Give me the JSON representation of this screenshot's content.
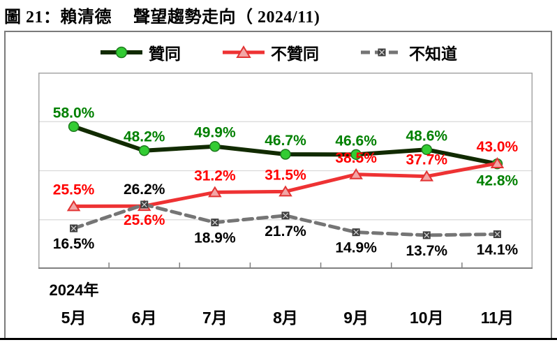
{
  "page": {
    "title": "圖 21：賴清德　 聲望趨勢走向（ 2024/11)"
  },
  "legend": {
    "items": [
      {
        "label": "贊同",
        "marker": "circle"
      },
      {
        "label": "不贊同",
        "marker": "triangle"
      },
      {
        "label": "不知道",
        "marker": "square-x"
      }
    ]
  },
  "chart_data": {
    "type": "line",
    "title": "圖 21：賴清德 聲望趨勢走向（ 2024/11)",
    "categories": [
      "5月",
      "6月",
      "7月",
      "8月",
      "9月",
      "10月",
      "11月"
    ],
    "x_axis_year_label": "2024年",
    "ylim": [
      0,
      80
    ],
    "gridlines": [
      20,
      40,
      60
    ],
    "grid": true,
    "legend_position": "top",
    "colors": {
      "grid": "#d9d9d9",
      "plot_border": "#a6a6a6",
      "axis": "#808080",
      "frame_border": "#7a7a7a"
    },
    "series": [
      {
        "name": "贊同",
        "marker": "circle",
        "line_color": "#112b00",
        "marker_fill": "#33cc33",
        "marker_stroke": "#1d7a1d",
        "label_color": "#008000",
        "values": [
          58.0,
          48.2,
          49.9,
          46.7,
          46.6,
          48.6,
          42.8
        ],
        "label_pos": [
          "above",
          "above",
          "above",
          "above",
          "above",
          "above",
          "below"
        ]
      },
      {
        "name": "不贊同",
        "marker": "triangle",
        "line_color": "#ee3233",
        "marker_fill": "#f2a6a6",
        "marker_stroke": "#e23333",
        "label_color": "#ff0000",
        "values": [
          25.5,
          25.6,
          31.2,
          31.5,
          38.5,
          37.7,
          43.0
        ],
        "label_pos": [
          "above",
          "below",
          "above",
          "above",
          "above",
          "above",
          "above"
        ]
      },
      {
        "name": "不知道",
        "marker": "square-x",
        "line_color": "#757575",
        "marker_fill": "#3f3f3f",
        "marker_stroke": "#3f3f3f",
        "label_color": "#000000",
        "values": [
          16.5,
          26.2,
          18.9,
          21.7,
          14.9,
          13.7,
          14.1
        ],
        "label_pos": [
          "below",
          "above",
          "below",
          "below",
          "below",
          "below",
          "below"
        ]
      }
    ]
  }
}
